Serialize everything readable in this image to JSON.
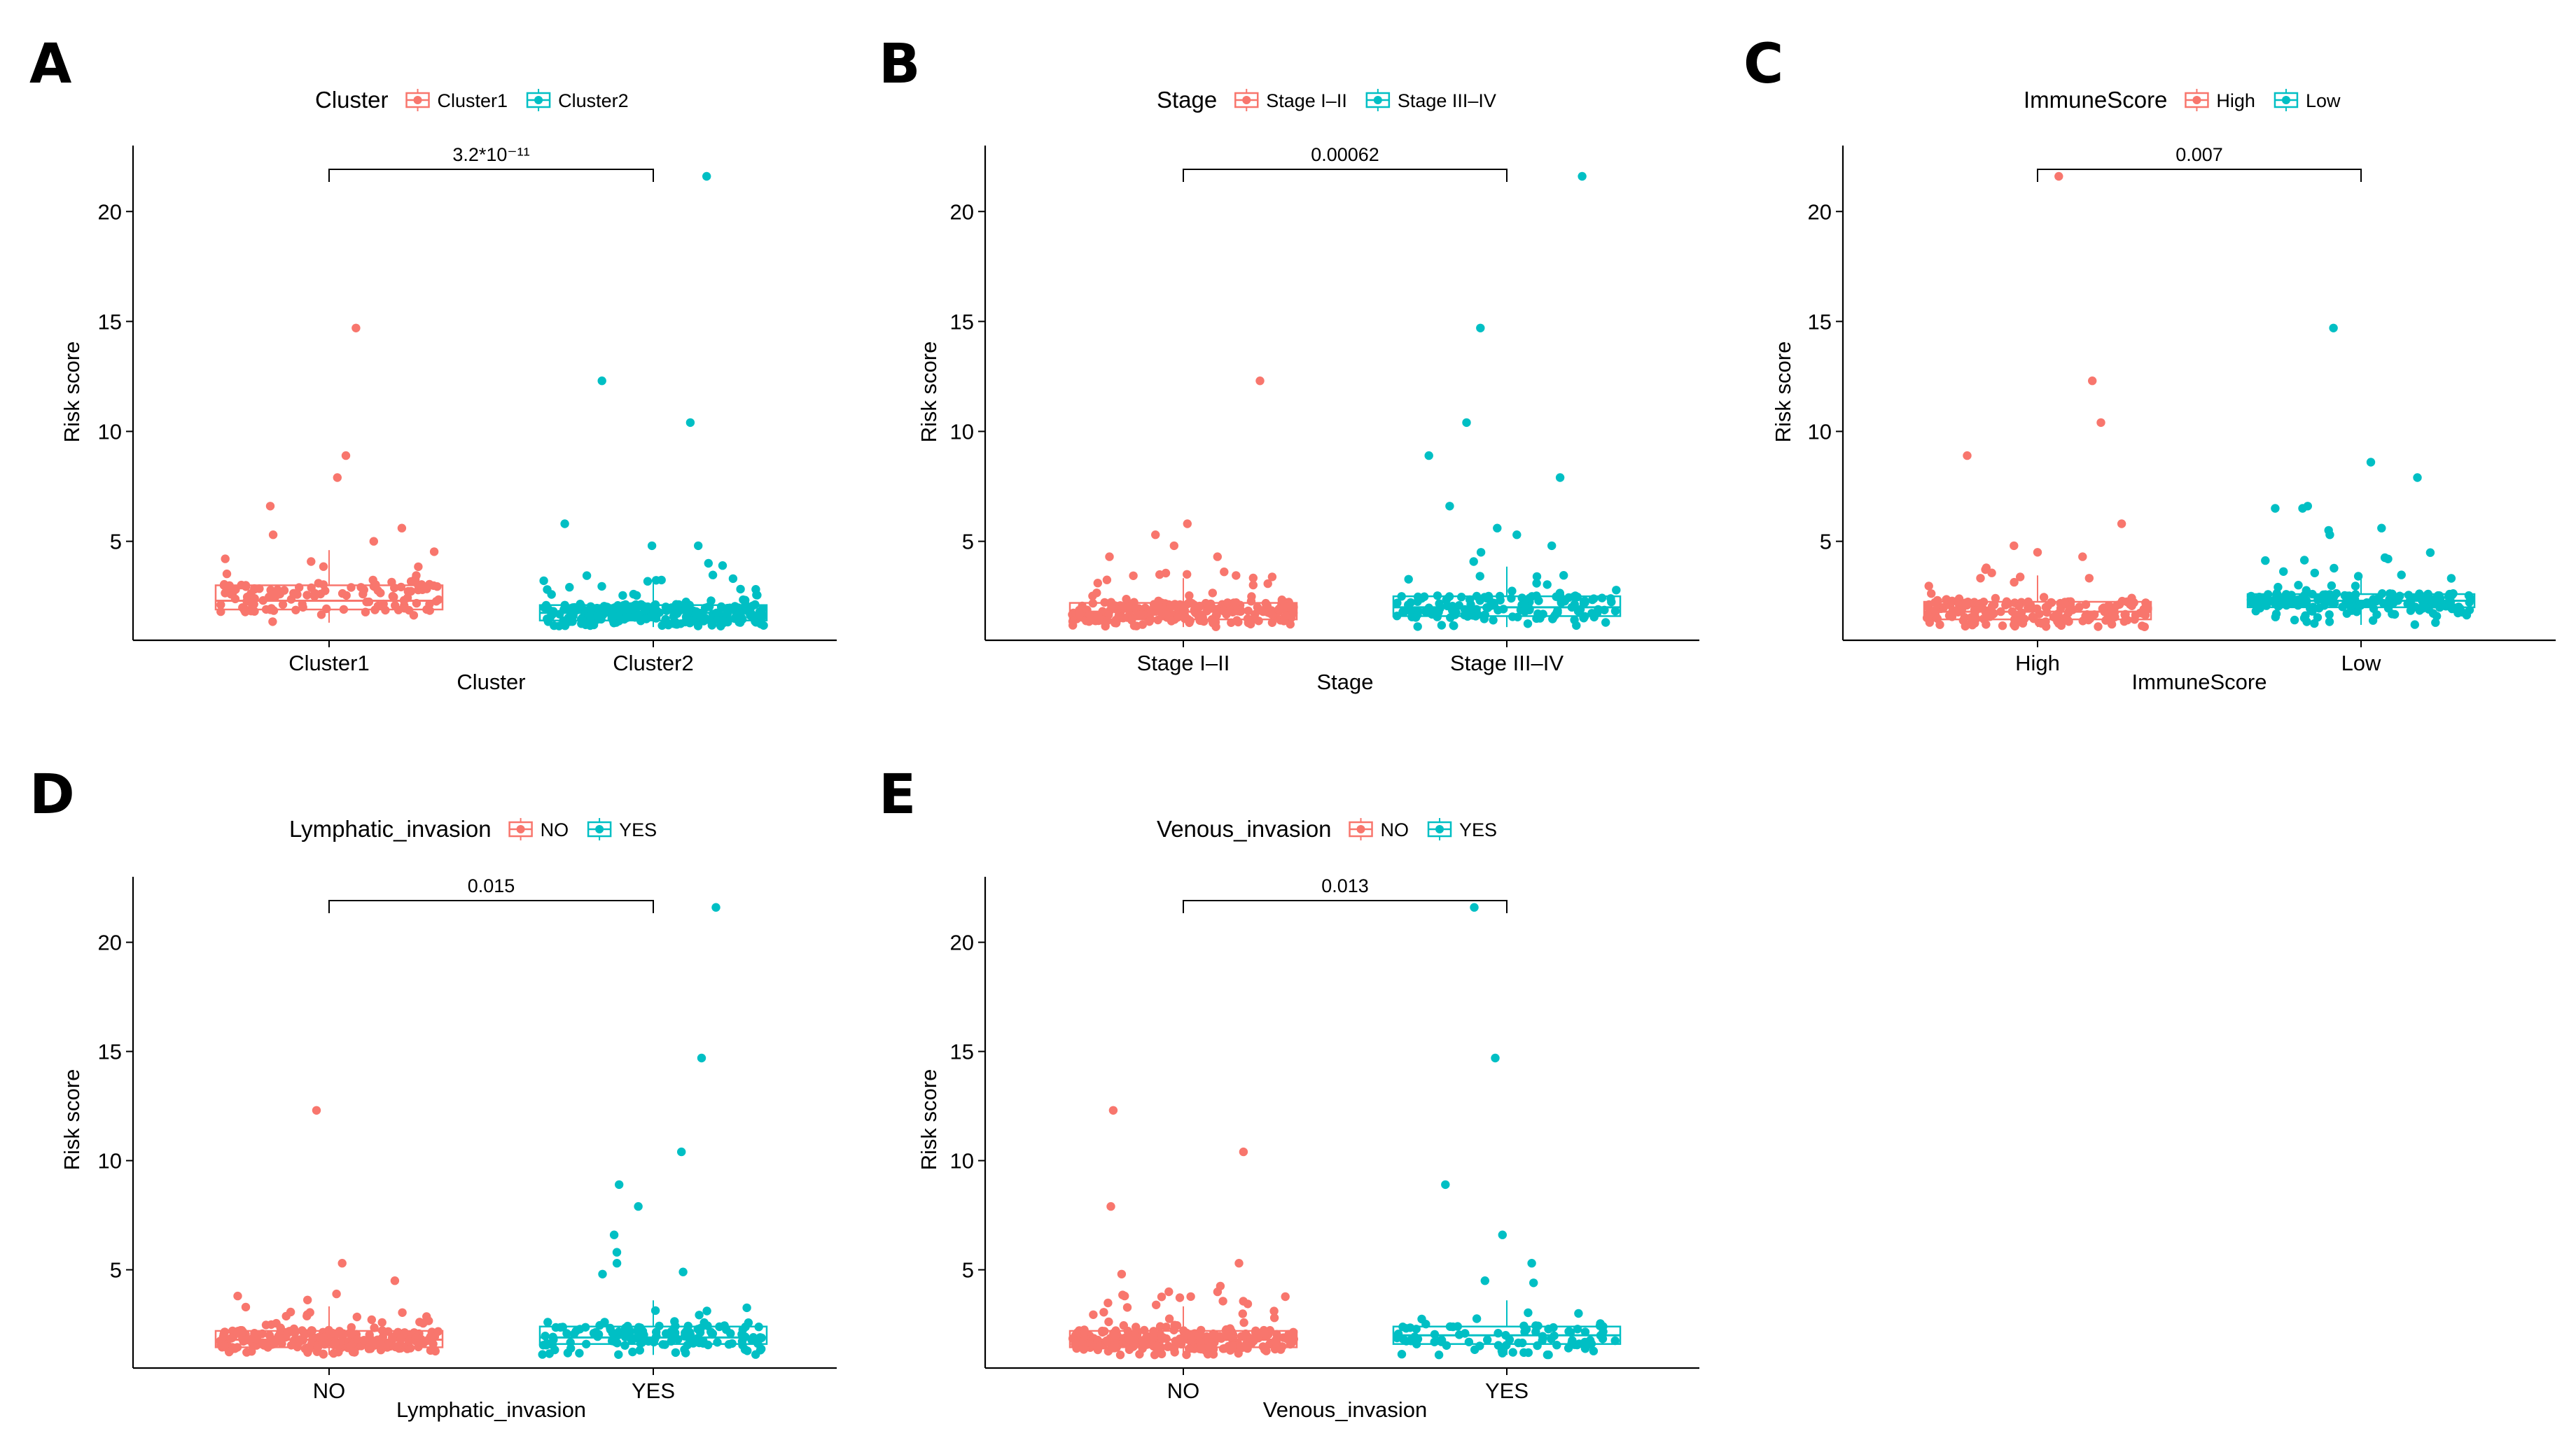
{
  "colors": {
    "group1": "#F8766D",
    "group2": "#00BFC4",
    "axis": "#000000"
  },
  "chart_data": [
    {
      "type": "boxplot-with-jitter",
      "panel": "A",
      "legend_title": "Cluster",
      "xlabel": "Cluster",
      "ylabel": "Risk score",
      "categories": [
        "Cluster1",
        "Cluster2"
      ],
      "ylim": [
        0.5,
        23
      ],
      "yticks": [
        5,
        10,
        15,
        20
      ],
      "pvalue": "3.2*10⁻¹¹",
      "series": [
        {
          "name": "Cluster1",
          "n": 120,
          "min": 1.3,
          "q1": 1.9,
          "median": 2.3,
          "q3": 3.0,
          "spread_max": 4.6,
          "outliers": [
            14.7,
            8.9,
            7.9,
            6.6,
            5.6,
            5.3,
            5.0
          ]
        },
        {
          "name": "Cluster2",
          "n": 260,
          "min": 1.1,
          "q1": 1.4,
          "median": 1.75,
          "q3": 2.1,
          "spread_max": 3.6,
          "outliers": [
            21.6,
            12.3,
            10.4,
            5.8,
            4.8,
            4.8,
            4.0,
            3.9
          ]
        }
      ]
    },
    {
      "type": "boxplot-with-jitter",
      "panel": "B",
      "legend_title": "Stage",
      "xlabel": "Stage",
      "ylabel": "Risk score",
      "categories": [
        "Stage I–II",
        "Stage III–IV"
      ],
      "ylim": [
        0.5,
        23
      ],
      "yticks": [
        5,
        10,
        15,
        20
      ],
      "pvalue": "0.00062",
      "series": [
        {
          "name": "Stage I–II",
          "n": 240,
          "min": 1.1,
          "q1": 1.45,
          "median": 1.8,
          "q3": 2.2,
          "spread_max": 3.8,
          "outliers": [
            12.3,
            5.8,
            5.3,
            4.8,
            4.3,
            4.3
          ]
        },
        {
          "name": "Stage III–IV",
          "n": 150,
          "min": 1.1,
          "q1": 1.6,
          "median": 2.0,
          "q3": 2.5,
          "spread_max": 4.2,
          "outliers": [
            21.6,
            14.7,
            10.4,
            8.9,
            7.9,
            6.6,
            5.6,
            5.3,
            4.8,
            4.5
          ]
        }
      ]
    },
    {
      "type": "boxplot-with-jitter",
      "panel": "C",
      "legend_title": "ImmuneScore",
      "xlabel": "ImmuneScore",
      "ylabel": "Risk score",
      "categories": [
        "High",
        "Low"
      ],
      "ylim": [
        0.5,
        23
      ],
      "yticks": [
        5,
        10,
        15,
        20
      ],
      "pvalue": "0.007",
      "series": [
        {
          "name": "High",
          "n": 190,
          "min": 1.1,
          "q1": 1.45,
          "median": 1.8,
          "q3": 2.25,
          "spread_max": 4.0,
          "outliers": [
            21.6,
            12.3,
            10.4,
            8.9,
            5.8,
            4.8,
            4.5,
            4.3
          ]
        },
        {
          "name": "Low",
          "n": 190,
          "min": 1.2,
          "q1": 2.0,
          "median": 2.3,
          "q3": 2.6,
          "spread_max": 4.6,
          "outliers": [
            14.7,
            8.6,
            7.9,
            6.6,
            6.5,
            6.5,
            5.6,
            5.5,
            5.3
          ]
        }
      ]
    },
    {
      "type": "boxplot-with-jitter",
      "panel": "D",
      "legend_title": "Lymphatic_invasion",
      "xlabel": "Lymphatic_invasion",
      "ylabel": "Risk score",
      "categories": [
        "NO",
        "YES"
      ],
      "ylim": [
        0.5,
        23
      ],
      "yticks": [
        5,
        10,
        15,
        20
      ],
      "pvalue": "0.015",
      "series": [
        {
          "name": "NO",
          "n": 240,
          "min": 1.1,
          "q1": 1.45,
          "median": 1.8,
          "q3": 2.2,
          "spread_max": 4.3,
          "outliers": [
            12.3,
            5.3,
            4.5
          ]
        },
        {
          "name": "YES",
          "n": 140,
          "min": 1.1,
          "q1": 1.6,
          "median": 1.9,
          "q3": 2.4,
          "spread_max": 4.0,
          "outliers": [
            21.6,
            14.7,
            10.4,
            8.9,
            7.9,
            6.6,
            5.8,
            5.3,
            4.9,
            4.8
          ]
        }
      ]
    },
    {
      "type": "boxplot-with-jitter",
      "panel": "E",
      "legend_title": "Venous_invasion",
      "xlabel": "Venous_invasion",
      "ylabel": "Risk score",
      "categories": [
        "NO",
        "YES"
      ],
      "ylim": [
        0.5,
        23
      ],
      "yticks": [
        5,
        10,
        15,
        20
      ],
      "pvalue": "0.013",
      "series": [
        {
          "name": "NO",
          "n": 280,
          "min": 1.1,
          "q1": 1.45,
          "median": 1.8,
          "q3": 2.2,
          "spread_max": 4.3,
          "outliers": [
            12.3,
            10.4,
            7.9,
            5.3,
            4.8
          ]
        },
        {
          "name": "YES",
          "n": 90,
          "min": 1.1,
          "q1": 1.6,
          "median": 2.0,
          "q3": 2.4,
          "spread_max": 3.8,
          "outliers": [
            21.6,
            14.7,
            8.9,
            6.6,
            5.3,
            4.5,
            4.4
          ]
        }
      ]
    }
  ]
}
